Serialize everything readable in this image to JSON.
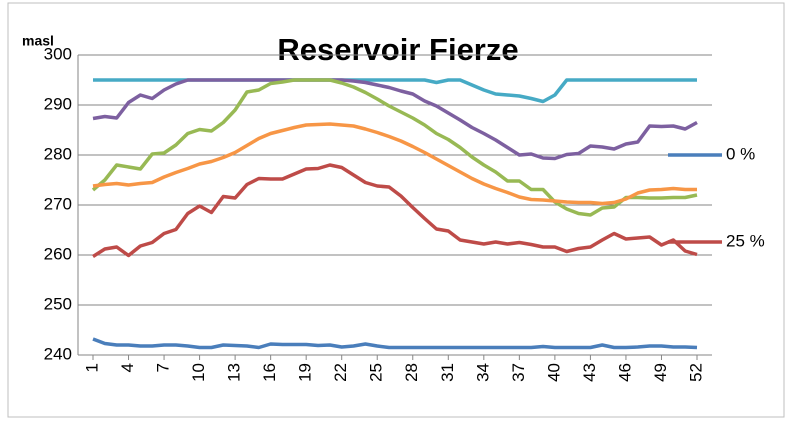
{
  "chart_data": {
    "type": "line",
    "title": "Reservoir Fierze",
    "y_label": "masl",
    "categories": [
      "1",
      null,
      null,
      "4",
      null,
      null,
      "7",
      null,
      null,
      "10",
      null,
      null,
      "13",
      null,
      null,
      "16",
      null,
      null,
      "19",
      null,
      null,
      "22",
      null,
      null,
      "25",
      null,
      null,
      "28",
      null,
      null,
      "31",
      null,
      null,
      "34",
      null,
      null,
      "37",
      null,
      null,
      "40",
      null,
      null,
      "43",
      null,
      null,
      "46",
      null,
      null,
      "49",
      null,
      null,
      "52"
    ],
    "ylim": [
      240,
      300
    ],
    "yticks": [
      240,
      250,
      260,
      270,
      280,
      290,
      300
    ],
    "grid": true,
    "legend": "right",
    "series": [
      {
        "name": "0 %",
        "color": "#4a7ebb",
        "values": [
          243.2,
          242.3,
          242,
          242,
          241.8,
          241.8,
          242,
          242,
          241.8,
          241.5,
          241.5,
          242,
          241.9,
          241.8,
          241.5,
          242.2,
          242.1,
          242.1,
          242.1,
          241.9,
          242,
          241.6,
          241.8,
          242.2,
          241.8,
          241.5,
          241.5,
          241.5,
          241.5,
          241.5,
          241.5,
          241.5,
          241.5,
          241.5,
          241.5,
          241.5,
          241.5,
          241.5,
          241.7,
          241.5,
          241.5,
          241.5,
          241.5,
          242,
          241.5,
          241.5,
          241.6,
          241.8,
          241.8,
          241.6,
          241.6,
          241.5
        ]
      },
      {
        "color": "#46aac5",
        "values": [
          295,
          295,
          295,
          295,
          295,
          295,
          295,
          295,
          295,
          295,
          295,
          295,
          295,
          295,
          295,
          295,
          295,
          295,
          295,
          295,
          295,
          295,
          295,
          295,
          295,
          295,
          295,
          295,
          295,
          294.5,
          295,
          295,
          294,
          293,
          292.2,
          292,
          291.8,
          291.3,
          290.7,
          292,
          295,
          295,
          295,
          295,
          295,
          295,
          295,
          295,
          295,
          295,
          295,
          295
        ]
      },
      {
        "color": "#7d60a0",
        "values": [
          287.3,
          287.7,
          287.4,
          290.5,
          292,
          291.3,
          293,
          294.2,
          295,
          295,
          295,
          295,
          295,
          295,
          295,
          295,
          295,
          295,
          295,
          295,
          295,
          295,
          294.8,
          294.5,
          294,
          293.5,
          292.8,
          292.2,
          290.8,
          289.8,
          288.4,
          287,
          285.5,
          284.3,
          283,
          281.5,
          280,
          280.2,
          279.4,
          279.3,
          280.1,
          280.3,
          281.8,
          281.6,
          281.2,
          282.2,
          282.6,
          285.8,
          285.7,
          285.8,
          285.2,
          286.5
        ]
      },
      {
        "color": "#98b954",
        "values": [
          273,
          275,
          278,
          277.6,
          277.2,
          280.2,
          280.4,
          282,
          284.3,
          285.1,
          284.8,
          286.5,
          289,
          292.6,
          293,
          294.3,
          294.6,
          295,
          295,
          295,
          295,
          294.4,
          293.6,
          292.5,
          291.2,
          289.8,
          288.6,
          287.4,
          286,
          284.3,
          283.1,
          281.5,
          279.6,
          278,
          276.6,
          274.8,
          274.8,
          273.1,
          273.1,
          270.6,
          269.2,
          268.3,
          268,
          269.4,
          269.6,
          271.5,
          271.5,
          271.4,
          271.4,
          271.5,
          271.5,
          272
        ]
      },
      {
        "color": "#f79646",
        "values": [
          273.8,
          274.1,
          274.3,
          274,
          274.3,
          274.5,
          275.6,
          276.5,
          277.3,
          278.2,
          278.7,
          279.5,
          280.5,
          281.9,
          283.3,
          284.3,
          284.9,
          285.5,
          286,
          286.1,
          286.2,
          286,
          285.8,
          285.2,
          284.5,
          283.7,
          282.8,
          281.7,
          280.5,
          279.2,
          277.9,
          276.6,
          275.3,
          274.2,
          273.3,
          272.5,
          271.6,
          271.1,
          271,
          270.8,
          270.6,
          270.5,
          270.5,
          270.3,
          270.5,
          271.2,
          272.4,
          273,
          273.1,
          273.3,
          273.1,
          273.1
        ]
      },
      {
        "name": "25 %",
        "color": "#be4b48",
        "values": [
          259.7,
          261.2,
          261.6,
          259.9,
          261.8,
          262.5,
          264.3,
          265.1,
          268.3,
          269.8,
          268.5,
          271.7,
          271.4,
          274.1,
          275.3,
          275.2,
          275.2,
          276.2,
          277.2,
          277.3,
          278,
          277.5,
          276,
          274.5,
          273.8,
          273.6,
          271.8,
          269.5,
          267.3,
          265.2,
          264.8,
          263,
          262.6,
          262.2,
          262.6,
          262.2,
          262.5,
          262.1,
          261.6,
          261.6,
          260.7,
          261.3,
          261.6,
          263,
          264.3,
          263.2,
          263.4,
          263.6,
          262,
          263,
          260.8,
          260.1
        ]
      }
    ]
  }
}
